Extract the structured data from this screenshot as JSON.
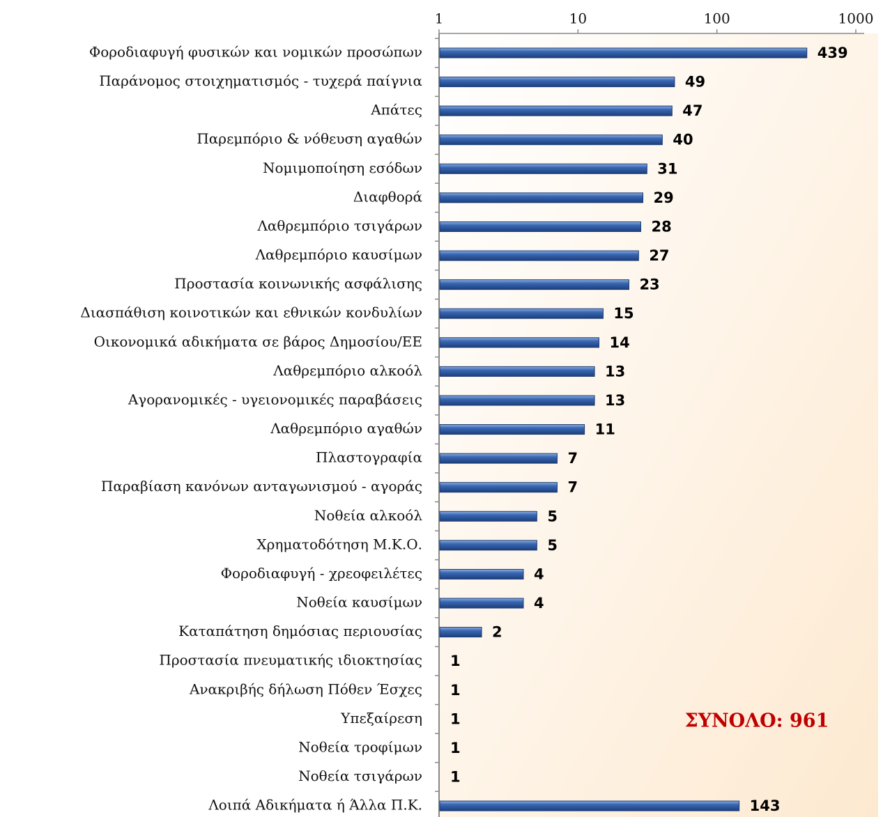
{
  "chart_data": {
    "type": "bar",
    "orientation": "horizontal",
    "categories": [
      "Φοροδιαφυγή φυσικών και νομικών προσώπων",
      "Παράνομος στοιχηματισμός - τυχερά παίγνια",
      "Απάτες",
      "Παρεμπόριο & νόθευση αγαθών",
      "Νομιμοποίηση εσόδων",
      "Διαφθορά",
      "Λαθρεμπόριο τσιγάρων",
      "Λαθρεμπόριο καυσίμων",
      "Προστασία κοινωνικής ασφάλισης",
      "Διασπάθιση κοινοτικών και εθνικών κονδυλίων",
      "Οικονομικά αδικήματα σε βάρος Δημοσίου/ΕΕ",
      "Λαθρεμπόριο αλκοόλ",
      "Αγορανομικές - υγειονομικές παραβάσεις",
      "Λαθρεμπόριο αγαθών",
      "Πλαστογραφία",
      "Παραβίαση κανόνων ανταγωνισμού - αγοράς",
      "Νοθεία αλκοόλ",
      "Χρηματοδότηση Μ.Κ.Ο.",
      "Φοροδιαφυγή - χρεοφειλέτες",
      "Νοθεία καυσίμων",
      "Καταπάτηση δημόσιας περιουσίας",
      "Προστασία πνευματικής ιδιοκτησίας",
      "Ανακριβής δήλωση Πόθεν Έσχες",
      "Υπεξαίρεση",
      "Νοθεία τροφίμων",
      "Νοθεία τσιγάρων",
      "Λοιπά Αδικήματα ή Άλλα Π.Κ."
    ],
    "values": [
      439,
      49,
      47,
      40,
      31,
      29,
      28,
      27,
      23,
      15,
      14,
      13,
      13,
      11,
      7,
      7,
      5,
      5,
      4,
      4,
      2,
      1,
      1,
      1,
      1,
      1,
      143
    ],
    "color": "#2f5ea8",
    "xscale": "log",
    "xlim": [
      1,
      1000
    ],
    "xticks": [
      1,
      10,
      100,
      1000
    ],
    "annotation": "ΣΥΝΟΛΟ: 961"
  }
}
